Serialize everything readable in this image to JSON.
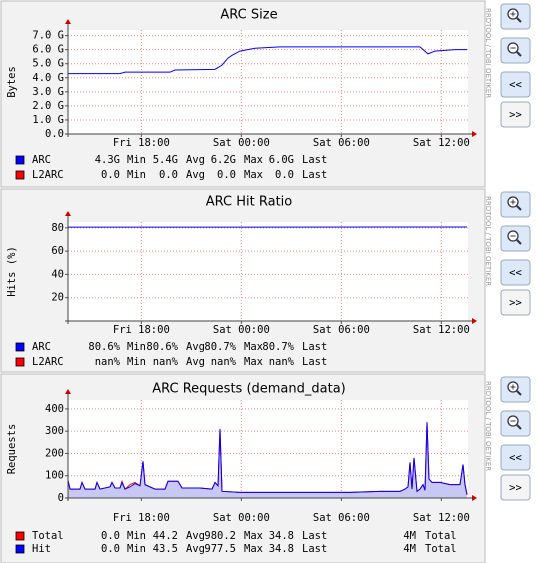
{
  "controls": {
    "back": "<<",
    "forward": ">>"
  },
  "chart_data": [
    {
      "type": "line",
      "title": "ARC Size",
      "ylabel": "Bytes",
      "watermark": "RRDTOOL / TOBI OETIKER",
      "xlim": [
        13.6,
        37.6
      ],
      "xticks": [
        {
          "value": 18,
          "label": "Fri 18:00"
        },
        {
          "value": 24,
          "label": "Sat 00:00"
        },
        {
          "value": 30,
          "label": "Sat 06:00"
        },
        {
          "value": 36,
          "label": "Sat 12:00"
        }
      ],
      "ylim": [
        0,
        7.4
      ],
      "yticks": [
        {
          "value": 0,
          "label": "0.0"
        },
        {
          "value": 1,
          "label": "1.0 G"
        },
        {
          "value": 2,
          "label": "2.0 G"
        },
        {
          "value": 3,
          "label": "3.0 G"
        },
        {
          "value": 4,
          "label": "4.0 G"
        },
        {
          "value": 5,
          "label": "5.0 G"
        },
        {
          "value": 6,
          "label": "6.0 G"
        },
        {
          "value": 7,
          "label": "7.0 G"
        }
      ],
      "grid": true,
      "stat_names": [
        "Min",
        "Avg",
        "Max",
        "Last"
      ],
      "x": [
        13.6,
        16.72,
        17.02,
        19.72,
        20.02,
        22.42,
        22.84,
        23.2,
        23.44,
        23.92,
        24.82,
        26.32,
        34.72,
        35.2,
        35.62,
        36.82,
        37.54
      ],
      "series": [
        {
          "name": "ARC",
          "color": "#0000ff",
          "values": [
            4.3,
            4.3,
            4.4,
            4.4,
            4.55,
            4.6,
            4.9,
            5.4,
            5.6,
            5.9,
            6.1,
            6.2,
            6.2,
            5.7,
            5.9,
            6.0,
            6.0
          ],
          "stats": [
            {
              "value": 4.3,
              "label": "4.3G"
            },
            {
              "value": 5.4,
              "label": "5.4G"
            },
            {
              "value": 6.2,
              "label": "6.2G"
            },
            {
              "value": 6.0,
              "label": "6.0G"
            }
          ]
        },
        {
          "name": "L2ARC",
          "color": "#ff0000",
          "values": [
            0,
            0,
            0,
            0,
            0,
            0,
            0,
            0,
            0,
            0,
            0,
            0,
            0,
            0,
            0,
            0,
            0
          ],
          "stats": [
            {
              "value": 0,
              "label": "0.0"
            },
            {
              "value": 0,
              "label": "0.0"
            },
            {
              "value": 0,
              "label": "0.0"
            },
            {
              "value": 0,
              "label": "0.0"
            }
          ]
        }
      ]
    },
    {
      "type": "line",
      "title": "ARC Hit Ratio",
      "ylabel": "Hits (%)",
      "watermark": "RRDTOOL / TOBI OETIKER",
      "xlim": [
        13.6,
        37.6
      ],
      "xticks": [
        {
          "value": 18,
          "label": "Fri 18:00"
        },
        {
          "value": 24,
          "label": "Sat 00:00"
        },
        {
          "value": 30,
          "label": "Sat 06:00"
        },
        {
          "value": 36,
          "label": "Sat 12:00"
        }
      ],
      "ylim": [
        0,
        85
      ],
      "yticks": [
        20,
        40,
        60,
        80
      ],
      "grid": true,
      "stat_names": [
        "Min",
        "Avg",
        "Max",
        "Last"
      ],
      "x": [
        13.6,
        37.54
      ],
      "series": [
        {
          "name": "ARC",
          "color": "#0000ff",
          "values": [
            80.6,
            80.7
          ],
          "stats": [
            {
              "value": 80.6,
              "label": "80.6%"
            },
            {
              "value": 80.6,
              "label": "80.6%"
            },
            {
              "value": 80.7,
              "label": "80.7%"
            },
            {
              "value": 80.7,
              "label": "80.7%"
            }
          ]
        },
        {
          "name": "L2ARC",
          "color": "#ff0000",
          "values": [
            null,
            null
          ],
          "stats": [
            {
              "value": null,
              "label": "nan%"
            },
            {
              "value": null,
              "label": "nan%"
            },
            {
              "value": null,
              "label": "nan%"
            },
            {
              "value": null,
              "label": "nan%"
            }
          ]
        }
      ]
    },
    {
      "type": "area",
      "title": "ARC Requests (demand_data)",
      "ylabel": "Requests",
      "watermark": "RRDTOOL / TOBI OETIKER",
      "xlim": [
        13.6,
        37.6
      ],
      "xticks": [
        {
          "value": 18,
          "label": "Fri 18:00"
        },
        {
          "value": 24,
          "label": "Sat 00:00"
        },
        {
          "value": 30,
          "label": "Sat 06:00"
        },
        {
          "value": 36,
          "label": "Sat 12:00"
        }
      ],
      "ylim": [
        0,
        440
      ],
      "yticks": [
        0,
        100,
        200,
        300,
        400
      ],
      "grid": true,
      "stat_names": [
        "Min",
        "Avg",
        "Max",
        "Last",
        "Total"
      ],
      "x": [
        13.6,
        13.72,
        14.32,
        14.44,
        14.62,
        15.22,
        15.34,
        15.52,
        16.12,
        16.24,
        16.42,
        16.72,
        16.84,
        17.02,
        17.32,
        17.62,
        17.92,
        18.1,
        18.22,
        18.52,
        18.82,
        19.42,
        19.6,
        20.2,
        20.44,
        21.52,
        22.24,
        22.42,
        22.6,
        22.72,
        22.84,
        23.92,
        27.52,
        30.52,
        32.32,
        33.52,
        33.82,
        34.0,
        34.12,
        34.24,
        34.36,
        34.54,
        34.72,
        34.9,
        35.02,
        35.14,
        35.26,
        35.44,
        35.92,
        36.52,
        37.12,
        37.3,
        37.42,
        37.54
      ],
      "series": [
        {
          "name": "Total",
          "color": "#ff0000",
          "values": [
            80,
            40,
            40,
            70,
            40,
            40,
            70,
            40,
            50,
            70,
            45,
            45,
            75,
            40,
            60,
            70,
            55,
            165,
            60,
            50,
            40,
            40,
            75,
            75,
            45,
            45,
            40,
            70,
            55,
            310,
            30,
            25,
            25,
            25,
            30,
            30,
            40,
            50,
            160,
            40,
            180,
            30,
            40,
            60,
            35,
            340,
            85,
            70,
            70,
            60,
            60,
            150,
            60,
            15
          ],
          "stats": [
            {
              "value": 0,
              "label": "0.0"
            },
            {
              "value": 44.2,
              "label": "44.2"
            },
            {
              "value": 980.2,
              "label": "980.2"
            },
            {
              "value": 34.8,
              "label": "34.8"
            },
            {
              "value": 4000000,
              "label": "4M"
            }
          ]
        },
        {
          "name": "Hit",
          "color": "#0000ff",
          "fill": "#c8c8f4",
          "values": [
            80,
            40,
            40,
            70,
            40,
            40,
            70,
            40,
            50,
            70,
            45,
            45,
            70,
            40,
            50,
            65,
            55,
            165,
            60,
            50,
            40,
            40,
            75,
            75,
            45,
            45,
            40,
            70,
            55,
            310,
            30,
            25,
            25,
            25,
            30,
            30,
            40,
            50,
            160,
            40,
            180,
            30,
            40,
            60,
            35,
            340,
            85,
            70,
            70,
            60,
            60,
            150,
            60,
            15
          ],
          "stats": [
            {
              "value": 0,
              "label": "0.0"
            },
            {
              "value": 43.5,
              "label": "43.5"
            },
            {
              "value": 977.5,
              "label": "977.5"
            },
            {
              "value": 34.8,
              "label": "34.8"
            },
            {
              "value": 4000000,
              "label": "4M"
            }
          ]
        }
      ]
    }
  ]
}
